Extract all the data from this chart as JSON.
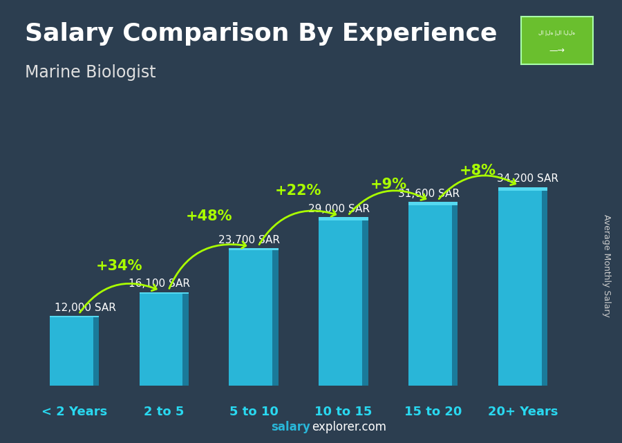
{
  "title": "Salary Comparison By Experience",
  "subtitle": "Marine Biologist",
  "ylabel": "Average Monthly Salary",
  "footer_bold": "salary",
  "footer_normal": "explorer.com",
  "categories": [
    "< 2 Years",
    "2 to 5",
    "5 to 10",
    "10 to 15",
    "15 to 20",
    "20+ Years"
  ],
  "values": [
    12000,
    16100,
    23700,
    29000,
    31600,
    34200
  ],
  "labels": [
    "12,000 SAR",
    "16,100 SAR",
    "23,700 SAR",
    "29,000 SAR",
    "31,600 SAR",
    "34,200 SAR"
  ],
  "pct_changes": [
    "+34%",
    "+48%",
    "+22%",
    "+9%",
    "+8%"
  ],
  "bar_color": "#29b6d8",
  "bar_edge_color": "#1a8aaa",
  "bg_color": "#2c3e50",
  "title_color": "#ffffff",
  "subtitle_color": "#e0e0e0",
  "label_color": "#ffffff",
  "pct_color": "#aaff00",
  "arrow_color": "#aaff00",
  "xtick_color": "#29d8f0",
  "footer_salary_color": "#29b6d8",
  "footer_explorer_color": "#ffffff",
  "ylim": [
    0,
    42000
  ],
  "bar_width": 0.55,
  "title_fontsize": 26,
  "subtitle_fontsize": 17,
  "label_fontsize": 11,
  "pct_fontsize": 15,
  "xtick_fontsize": 13,
  "ylabel_fontsize": 9,
  "footer_fontsize": 12
}
